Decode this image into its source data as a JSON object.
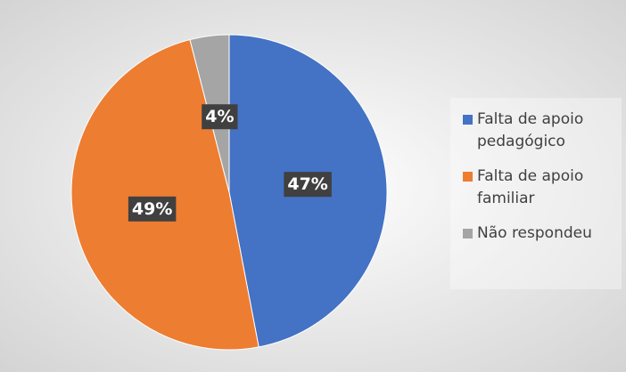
{
  "chart_data": {
    "type": "pie",
    "categories": [
      "Falta de apoio pedagógico",
      "Falta de apoio familiar",
      "Não respondeu"
    ],
    "values": [
      47,
      49,
      4
    ],
    "value_labels": [
      "47%",
      "49%",
      "4%"
    ],
    "colors": [
      "#4472c4",
      "#ed7d31",
      "#a5a5a5"
    ],
    "legend": "right"
  }
}
